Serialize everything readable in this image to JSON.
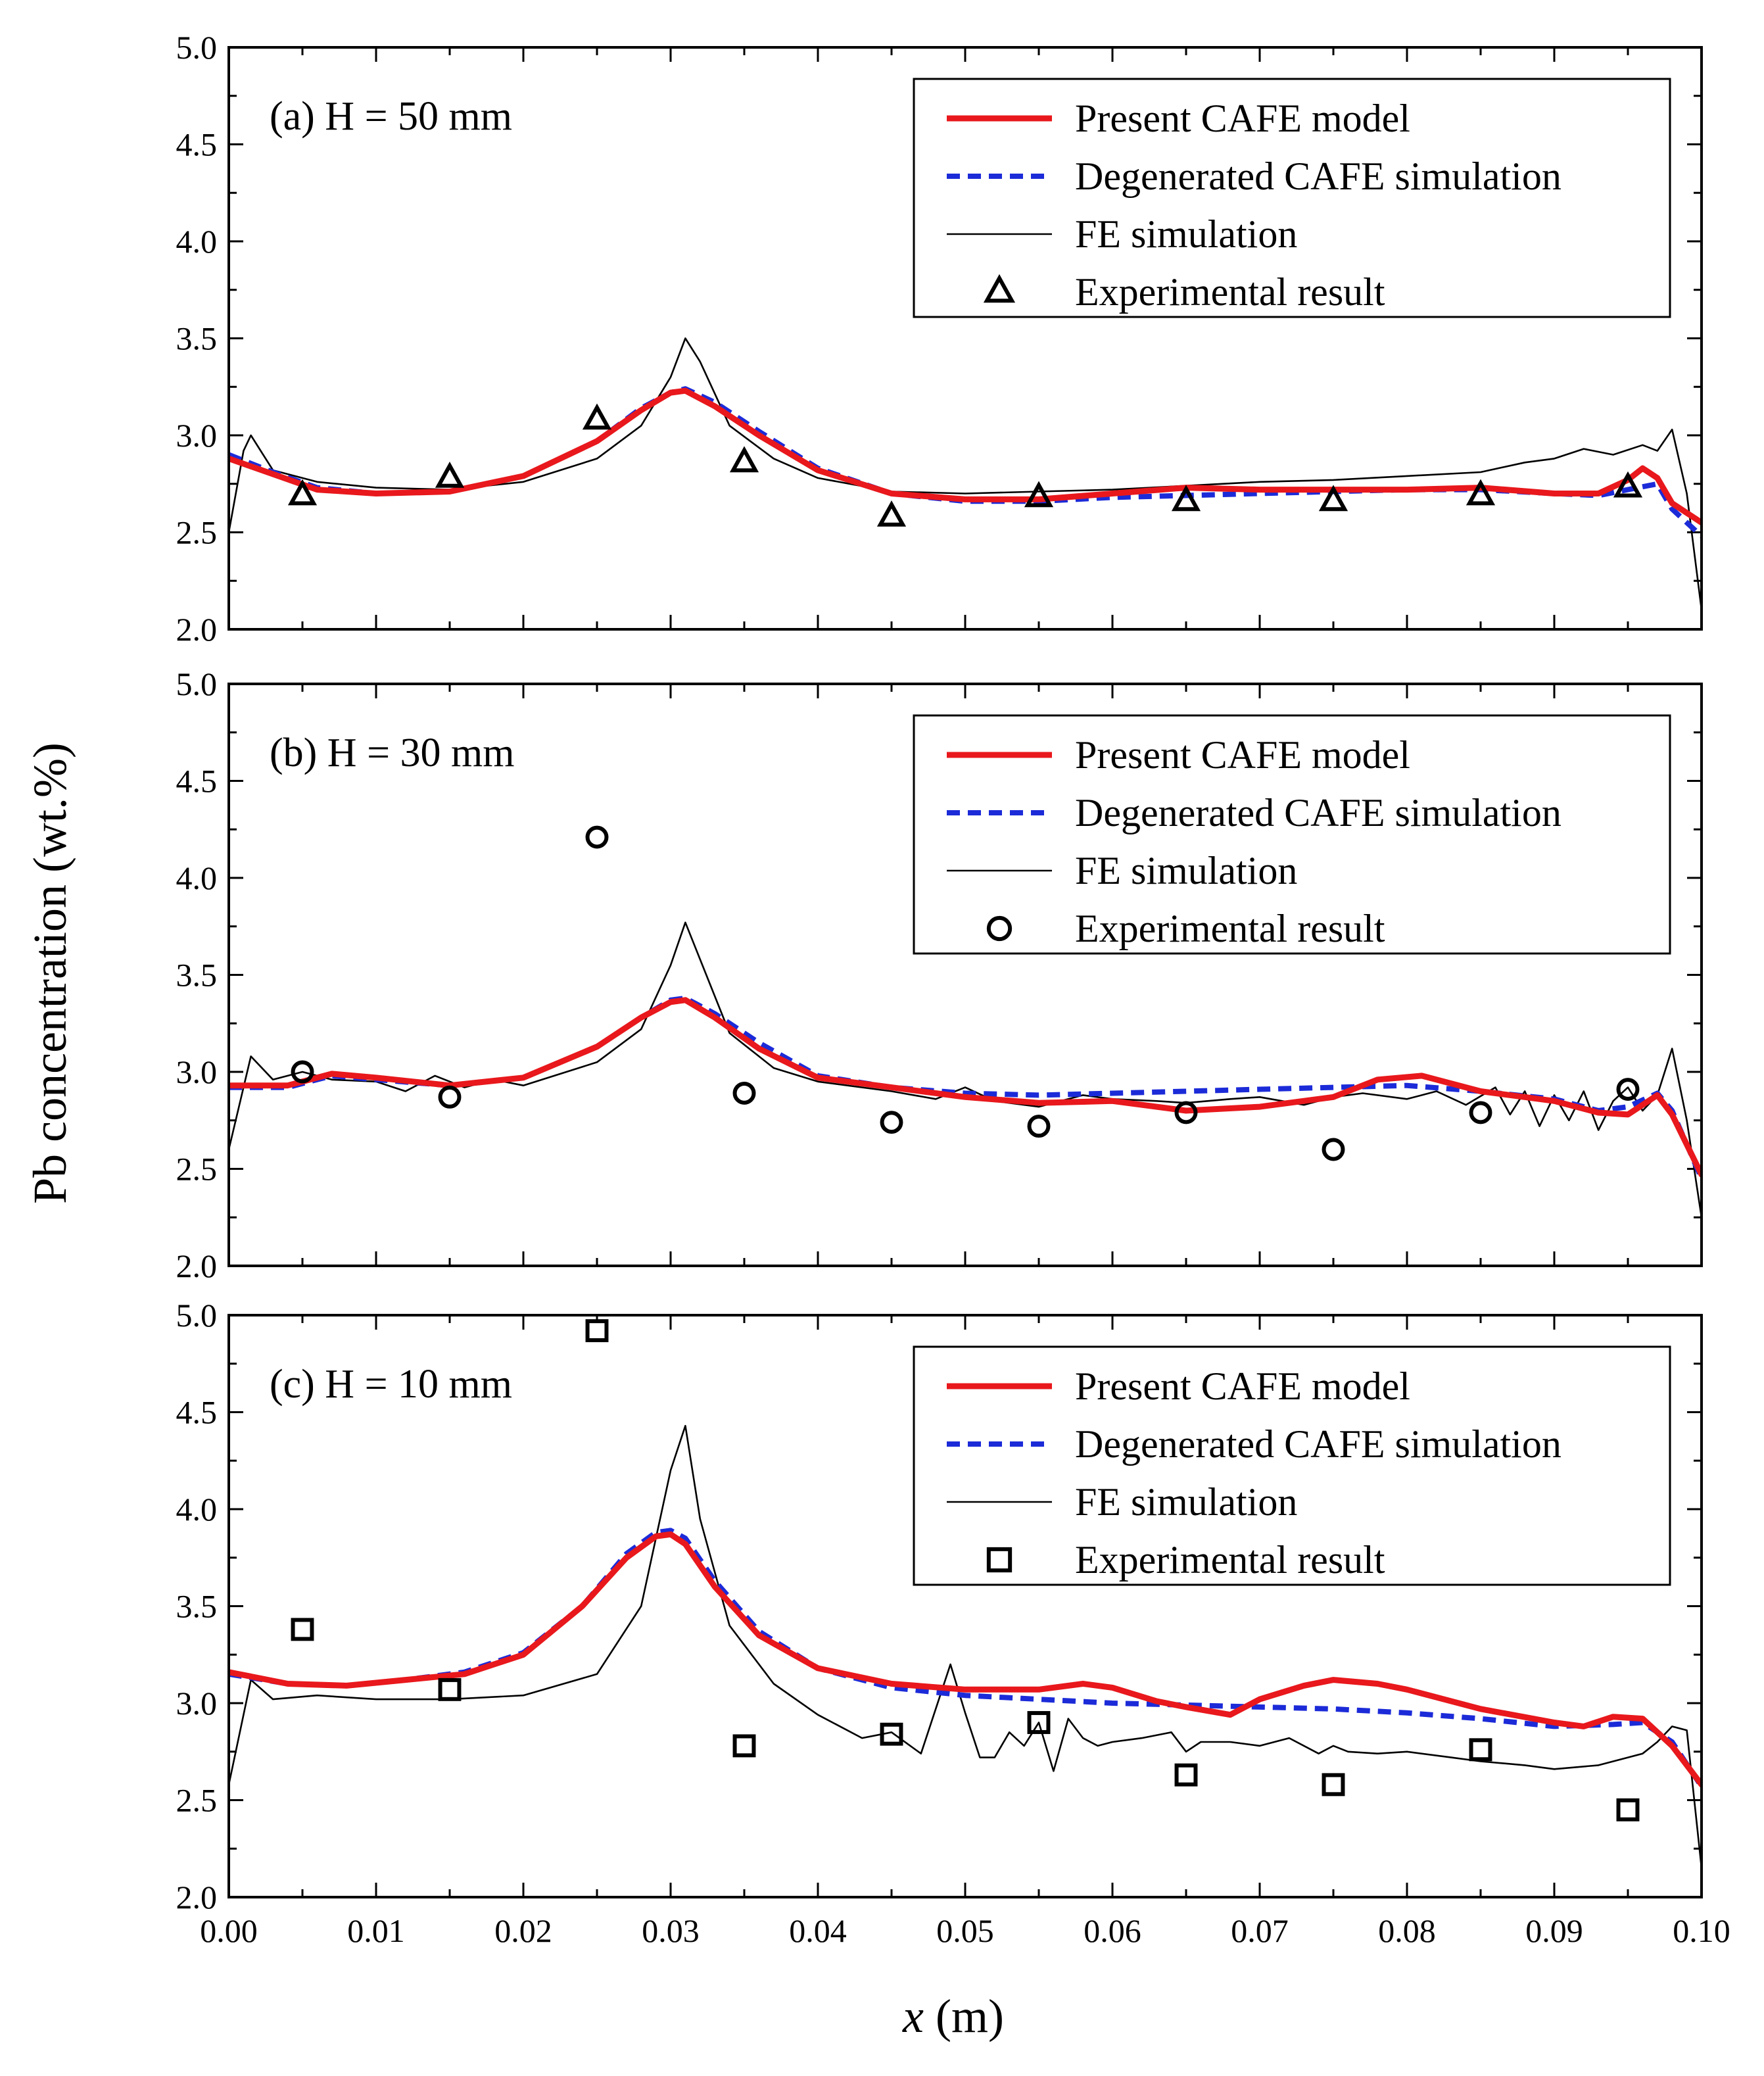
{
  "figure": {
    "ylabel": "Pb concentration (wt.%)",
    "xlabel_var": "x",
    "xlabel_unit": " (m)"
  },
  "colors": {
    "present": "#e8181c",
    "degenerated": "#1c2bd8",
    "fe": "#000000",
    "markers": "#000000"
  },
  "chart_data": [
    {
      "type": "line",
      "panel": "(a) H = 50 mm",
      "xlim": [
        0,
        0.1
      ],
      "ylim": [
        2.0,
        5.0
      ],
      "xticks": [
        "0.00",
        "0.01",
        "0.02",
        "0.03",
        "0.04",
        "0.05",
        "0.06",
        "0.07",
        "0.08",
        "0.09",
        "0.10"
      ],
      "yticks": [
        "2.0",
        "2.5",
        "3.0",
        "3.5",
        "4.0",
        "4.5",
        "5.0"
      ],
      "legend": {
        "position": "top-right",
        "entries": [
          "Present CAFE model",
          "Degenerated CAFE simulation",
          "FE simulation",
          "Experimental result"
        ]
      },
      "marker": "triangle",
      "series": [
        {
          "name": "Present CAFE model",
          "style": "present",
          "x": [
            0.0,
            0.003,
            0.006,
            0.01,
            0.015,
            0.02,
            0.025,
            0.028,
            0.03,
            0.031,
            0.033,
            0.036,
            0.04,
            0.045,
            0.05,
            0.055,
            0.06,
            0.065,
            0.07,
            0.075,
            0.08,
            0.085,
            0.09,
            0.093,
            0.095,
            0.096,
            0.097,
            0.098,
            0.1
          ],
          "y": [
            2.88,
            2.8,
            2.72,
            2.7,
            2.71,
            2.79,
            2.97,
            3.13,
            3.22,
            3.23,
            3.15,
            3.0,
            2.82,
            2.7,
            2.67,
            2.67,
            2.7,
            2.73,
            2.72,
            2.72,
            2.72,
            2.73,
            2.7,
            2.7,
            2.77,
            2.83,
            2.78,
            2.65,
            2.55
          ]
        },
        {
          "name": "Degenerated CAFE simulation",
          "style": "degenerated",
          "x": [
            0.0,
            0.003,
            0.006,
            0.01,
            0.015,
            0.02,
            0.025,
            0.028,
            0.03,
            0.031,
            0.033,
            0.036,
            0.04,
            0.045,
            0.05,
            0.055,
            0.06,
            0.065,
            0.07,
            0.075,
            0.08,
            0.085,
            0.09,
            0.093,
            0.095,
            0.097,
            0.098,
            0.1
          ],
          "y": [
            2.9,
            2.81,
            2.73,
            2.7,
            2.71,
            2.79,
            2.97,
            3.14,
            3.22,
            3.24,
            3.17,
            3.02,
            2.83,
            2.7,
            2.66,
            2.66,
            2.68,
            2.69,
            2.7,
            2.71,
            2.72,
            2.72,
            2.7,
            2.69,
            2.72,
            2.75,
            2.62,
            2.48
          ]
        },
        {
          "name": "FE simulation",
          "style": "fe",
          "x": [
            0.0,
            0.001,
            0.0015,
            0.003,
            0.006,
            0.01,
            0.015,
            0.02,
            0.025,
            0.028,
            0.03,
            0.031,
            0.032,
            0.034,
            0.037,
            0.04,
            0.045,
            0.05,
            0.055,
            0.06,
            0.065,
            0.07,
            0.075,
            0.08,
            0.085,
            0.088,
            0.09,
            0.092,
            0.094,
            0.096,
            0.097,
            0.098,
            0.099,
            0.1
          ],
          "y": [
            2.5,
            2.92,
            3.0,
            2.82,
            2.76,
            2.73,
            2.72,
            2.76,
            2.88,
            3.05,
            3.3,
            3.5,
            3.38,
            3.05,
            2.88,
            2.78,
            2.71,
            2.7,
            2.71,
            2.72,
            2.74,
            2.76,
            2.77,
            2.79,
            2.81,
            2.86,
            2.88,
            2.93,
            2.9,
            2.95,
            2.92,
            3.03,
            2.7,
            2.1
          ]
        },
        {
          "name": "Experimental result",
          "style": "markers",
          "x": [
            0.005,
            0.015,
            0.025,
            0.035,
            0.045,
            0.055,
            0.065,
            0.075,
            0.085,
            0.095
          ],
          "y": [
            2.69,
            2.78,
            3.08,
            2.86,
            2.58,
            2.68,
            2.66,
            2.66,
            2.69,
            2.73
          ]
        }
      ]
    },
    {
      "type": "line",
      "panel": "(b) H = 30 mm",
      "xlim": [
        0,
        0.1
      ],
      "ylim": [
        2.0,
        5.0
      ],
      "xticks": [
        "0.00",
        "0.01",
        "0.02",
        "0.03",
        "0.04",
        "0.05",
        "0.06",
        "0.07",
        "0.08",
        "0.09",
        "0.10"
      ],
      "yticks": [
        "2.0",
        "2.5",
        "3.0",
        "3.5",
        "4.0",
        "4.5",
        "5.0"
      ],
      "legend": {
        "position": "top-right",
        "entries": [
          "Present CAFE model",
          "Degenerated CAFE simulation",
          "FE simulation",
          "Experimental result"
        ]
      },
      "marker": "circle",
      "series": [
        {
          "name": "Present CAFE model",
          "style": "present",
          "x": [
            0.0,
            0.004,
            0.007,
            0.01,
            0.015,
            0.02,
            0.025,
            0.028,
            0.03,
            0.031,
            0.033,
            0.036,
            0.04,
            0.045,
            0.05,
            0.055,
            0.06,
            0.065,
            0.07,
            0.075,
            0.078,
            0.081,
            0.085,
            0.09,
            0.093,
            0.095,
            0.097,
            0.098,
            0.1
          ],
          "y": [
            2.93,
            2.93,
            2.99,
            2.97,
            2.93,
            2.97,
            3.13,
            3.28,
            3.36,
            3.37,
            3.28,
            3.12,
            2.97,
            2.92,
            2.87,
            2.84,
            2.85,
            2.8,
            2.82,
            2.87,
            2.96,
            2.98,
            2.9,
            2.85,
            2.79,
            2.78,
            2.88,
            2.78,
            2.47
          ]
        },
        {
          "name": "Degenerated CAFE simulation",
          "style": "degenerated",
          "x": [
            0.0,
            0.004,
            0.007,
            0.01,
            0.015,
            0.02,
            0.025,
            0.028,
            0.03,
            0.031,
            0.033,
            0.036,
            0.04,
            0.045,
            0.05,
            0.055,
            0.06,
            0.065,
            0.07,
            0.075,
            0.08,
            0.085,
            0.09,
            0.093,
            0.095,
            0.097,
            0.098,
            0.1
          ],
          "y": [
            2.92,
            2.92,
            2.98,
            2.96,
            2.93,
            2.97,
            3.13,
            3.28,
            3.37,
            3.38,
            3.3,
            3.15,
            2.98,
            2.92,
            2.89,
            2.88,
            2.89,
            2.9,
            2.91,
            2.92,
            2.93,
            2.9,
            2.86,
            2.8,
            2.82,
            2.89,
            2.8,
            2.45
          ]
        },
        {
          "name": "FE simulation",
          "style": "fe",
          "x": [
            0.0,
            0.0015,
            0.003,
            0.005,
            0.007,
            0.01,
            0.012,
            0.014,
            0.016,
            0.018,
            0.02,
            0.025,
            0.028,
            0.03,
            0.031,
            0.032,
            0.034,
            0.037,
            0.04,
            0.045,
            0.048,
            0.05,
            0.052,
            0.055,
            0.058,
            0.06,
            0.063,
            0.065,
            0.068,
            0.07,
            0.073,
            0.075,
            0.077,
            0.08,
            0.082,
            0.084,
            0.086,
            0.087,
            0.088,
            0.089,
            0.09,
            0.091,
            0.092,
            0.093,
            0.094,
            0.095,
            0.096,
            0.097,
            0.098,
            0.099,
            0.1
          ],
          "y": [
            2.6,
            3.08,
            2.96,
            3.0,
            2.96,
            2.95,
            2.9,
            2.98,
            2.92,
            2.96,
            2.93,
            3.05,
            3.22,
            3.55,
            3.77,
            3.58,
            3.2,
            3.02,
            2.95,
            2.9,
            2.86,
            2.92,
            2.85,
            2.82,
            2.88,
            2.86,
            2.85,
            2.84,
            2.86,
            2.87,
            2.83,
            2.87,
            2.89,
            2.86,
            2.9,
            2.83,
            2.92,
            2.78,
            2.9,
            2.72,
            2.88,
            2.75,
            2.9,
            2.7,
            2.85,
            2.92,
            2.8,
            2.88,
            3.12,
            2.75,
            2.25
          ]
        },
        {
          "name": "Experimental result",
          "style": "markers",
          "x": [
            0.005,
            0.015,
            0.025,
            0.035,
            0.045,
            0.055,
            0.065,
            0.075,
            0.085,
            0.095
          ],
          "y": [
            3.0,
            2.87,
            4.21,
            2.89,
            2.74,
            2.72,
            2.79,
            2.6,
            2.79,
            2.91
          ]
        }
      ]
    },
    {
      "type": "line",
      "panel": "(c) H = 10 mm",
      "xlim": [
        0,
        0.1
      ],
      "ylim": [
        2.0,
        5.0
      ],
      "xticks": [
        "0.00",
        "0.01",
        "0.02",
        "0.03",
        "0.04",
        "0.05",
        "0.06",
        "0.07",
        "0.08",
        "0.09",
        "0.10"
      ],
      "yticks": [
        "2.0",
        "2.5",
        "3.0",
        "3.5",
        "4.0",
        "4.5",
        "5.0"
      ],
      "legend": {
        "position": "top-right",
        "entries": [
          "Present CAFE model",
          "Degenerated CAFE simulation",
          "FE simulation",
          "Experimental result"
        ]
      },
      "marker": "square",
      "series": [
        {
          "name": "Present CAFE model",
          "style": "present",
          "x": [
            0.0,
            0.004,
            0.008,
            0.012,
            0.016,
            0.02,
            0.024,
            0.027,
            0.029,
            0.03,
            0.031,
            0.033,
            0.036,
            0.04,
            0.045,
            0.05,
            0.055,
            0.058,
            0.06,
            0.063,
            0.065,
            0.068,
            0.07,
            0.073,
            0.075,
            0.078,
            0.08,
            0.085,
            0.09,
            0.092,
            0.094,
            0.096,
            0.098,
            0.1
          ],
          "y": [
            3.16,
            3.1,
            3.09,
            3.12,
            3.15,
            3.25,
            3.5,
            3.75,
            3.86,
            3.87,
            3.82,
            3.6,
            3.35,
            3.18,
            3.1,
            3.07,
            3.07,
            3.1,
            3.08,
            3.01,
            2.98,
            2.94,
            3.02,
            3.09,
            3.12,
            3.1,
            3.07,
            2.97,
            2.9,
            2.88,
            2.93,
            2.92,
            2.78,
            2.58
          ]
        },
        {
          "name": "Degenerated CAFE simulation",
          "style": "degenerated",
          "x": [
            0.0,
            0.004,
            0.008,
            0.012,
            0.016,
            0.02,
            0.024,
            0.027,
            0.029,
            0.03,
            0.031,
            0.033,
            0.036,
            0.04,
            0.045,
            0.05,
            0.055,
            0.06,
            0.065,
            0.07,
            0.075,
            0.08,
            0.085,
            0.09,
            0.094,
            0.096,
            0.098,
            0.1
          ],
          "y": [
            3.15,
            3.1,
            3.09,
            3.12,
            3.16,
            3.26,
            3.5,
            3.77,
            3.88,
            3.89,
            3.85,
            3.63,
            3.37,
            3.18,
            3.08,
            3.04,
            3.02,
            3.0,
            2.99,
            2.98,
            2.97,
            2.95,
            2.92,
            2.88,
            2.89,
            2.9,
            2.8,
            2.57
          ]
        },
        {
          "name": "FE simulation",
          "style": "fe",
          "x": [
            0.0,
            0.0015,
            0.003,
            0.006,
            0.01,
            0.015,
            0.02,
            0.025,
            0.028,
            0.03,
            0.031,
            0.032,
            0.034,
            0.037,
            0.04,
            0.043,
            0.045,
            0.047,
            0.049,
            0.05,
            0.051,
            0.052,
            0.053,
            0.054,
            0.055,
            0.056,
            0.057,
            0.058,
            0.059,
            0.06,
            0.062,
            0.064,
            0.065,
            0.066,
            0.068,
            0.07,
            0.072,
            0.074,
            0.075,
            0.076,
            0.078,
            0.08,
            0.083,
            0.085,
            0.088,
            0.09,
            0.093,
            0.095,
            0.096,
            0.097,
            0.098,
            0.099,
            0.1
          ],
          "y": [
            2.58,
            3.12,
            3.02,
            3.04,
            3.02,
            3.02,
            3.04,
            3.15,
            3.5,
            4.2,
            4.43,
            3.95,
            3.4,
            3.1,
            2.94,
            2.82,
            2.85,
            2.74,
            3.2,
            2.95,
            2.72,
            2.72,
            2.85,
            2.78,
            2.9,
            2.65,
            2.92,
            2.82,
            2.78,
            2.8,
            2.82,
            2.85,
            2.75,
            2.8,
            2.8,
            2.78,
            2.82,
            2.74,
            2.78,
            2.75,
            2.74,
            2.75,
            2.72,
            2.7,
            2.68,
            2.66,
            2.68,
            2.72,
            2.74,
            2.8,
            2.88,
            2.86,
            2.15
          ]
        },
        {
          "name": "Experimental result",
          "style": "markers",
          "x": [
            0.005,
            0.015,
            0.025,
            0.035,
            0.045,
            0.055,
            0.065,
            0.075,
            0.085,
            0.095
          ],
          "y": [
            3.38,
            3.07,
            4.92,
            2.78,
            2.84,
            2.9,
            2.63,
            2.58,
            2.76,
            2.45
          ]
        }
      ]
    }
  ]
}
